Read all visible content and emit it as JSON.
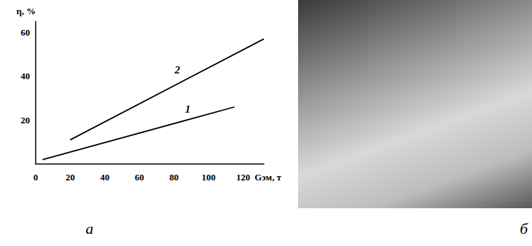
{
  "chart_data": {
    "type": "line",
    "x_label": "Gэм, т",
    "y_label": "η, %",
    "xlim": [
      0,
      132
    ],
    "xticks": [
      0,
      20,
      40,
      60,
      80,
      100,
      120
    ],
    "ylim": [
      0,
      65
    ],
    "yticks": [
      20,
      40,
      60
    ],
    "grid": false,
    "series": [
      {
        "name": "1",
        "color": "#000000",
        "values": [
          [
            4,
            2
          ],
          [
            115,
            26
          ]
        ],
        "label_position": [
          88,
          25
        ]
      },
      {
        "name": "2",
        "color": "#000000",
        "values": [
          [
            20,
            11
          ],
          [
            132,
            57
          ]
        ],
        "label_position": [
          82,
          43
        ]
      }
    ],
    "annotations": [
      "а",
      "б"
    ]
  }
}
